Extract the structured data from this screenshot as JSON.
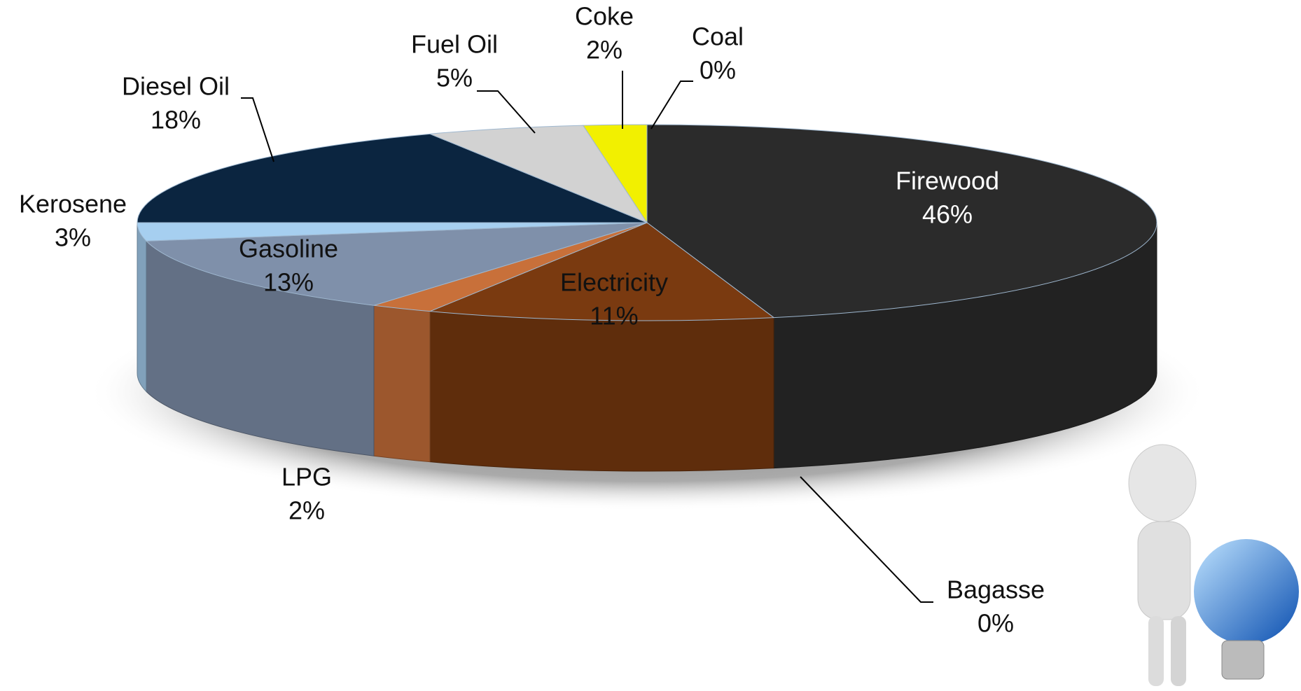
{
  "chart_data": {
    "type": "pie",
    "categories": [
      "Firewood",
      "Bagasse",
      "Electricity",
      "LPG",
      "Gasoline",
      "Kerosene",
      "Diesel Oil",
      "Fuel Oil",
      "Coke",
      "Coal"
    ],
    "values": [
      46,
      0,
      11,
      2,
      13,
      3,
      18,
      5,
      2,
      0
    ],
    "value_labels": [
      "46%",
      "0%",
      "11%",
      "2%",
      "13%",
      "3%",
      "18%",
      "5%",
      "2%",
      "0%"
    ],
    "colors": [
      "#2b2b2b",
      "#8a6a3a",
      "#7a3a10",
      "#c8703a",
      "#7f90aa",
      "#a6cff0",
      "#0b2540",
      "#d2d2d2",
      "#f2f000",
      "#7f7f7f"
    ]
  }
}
